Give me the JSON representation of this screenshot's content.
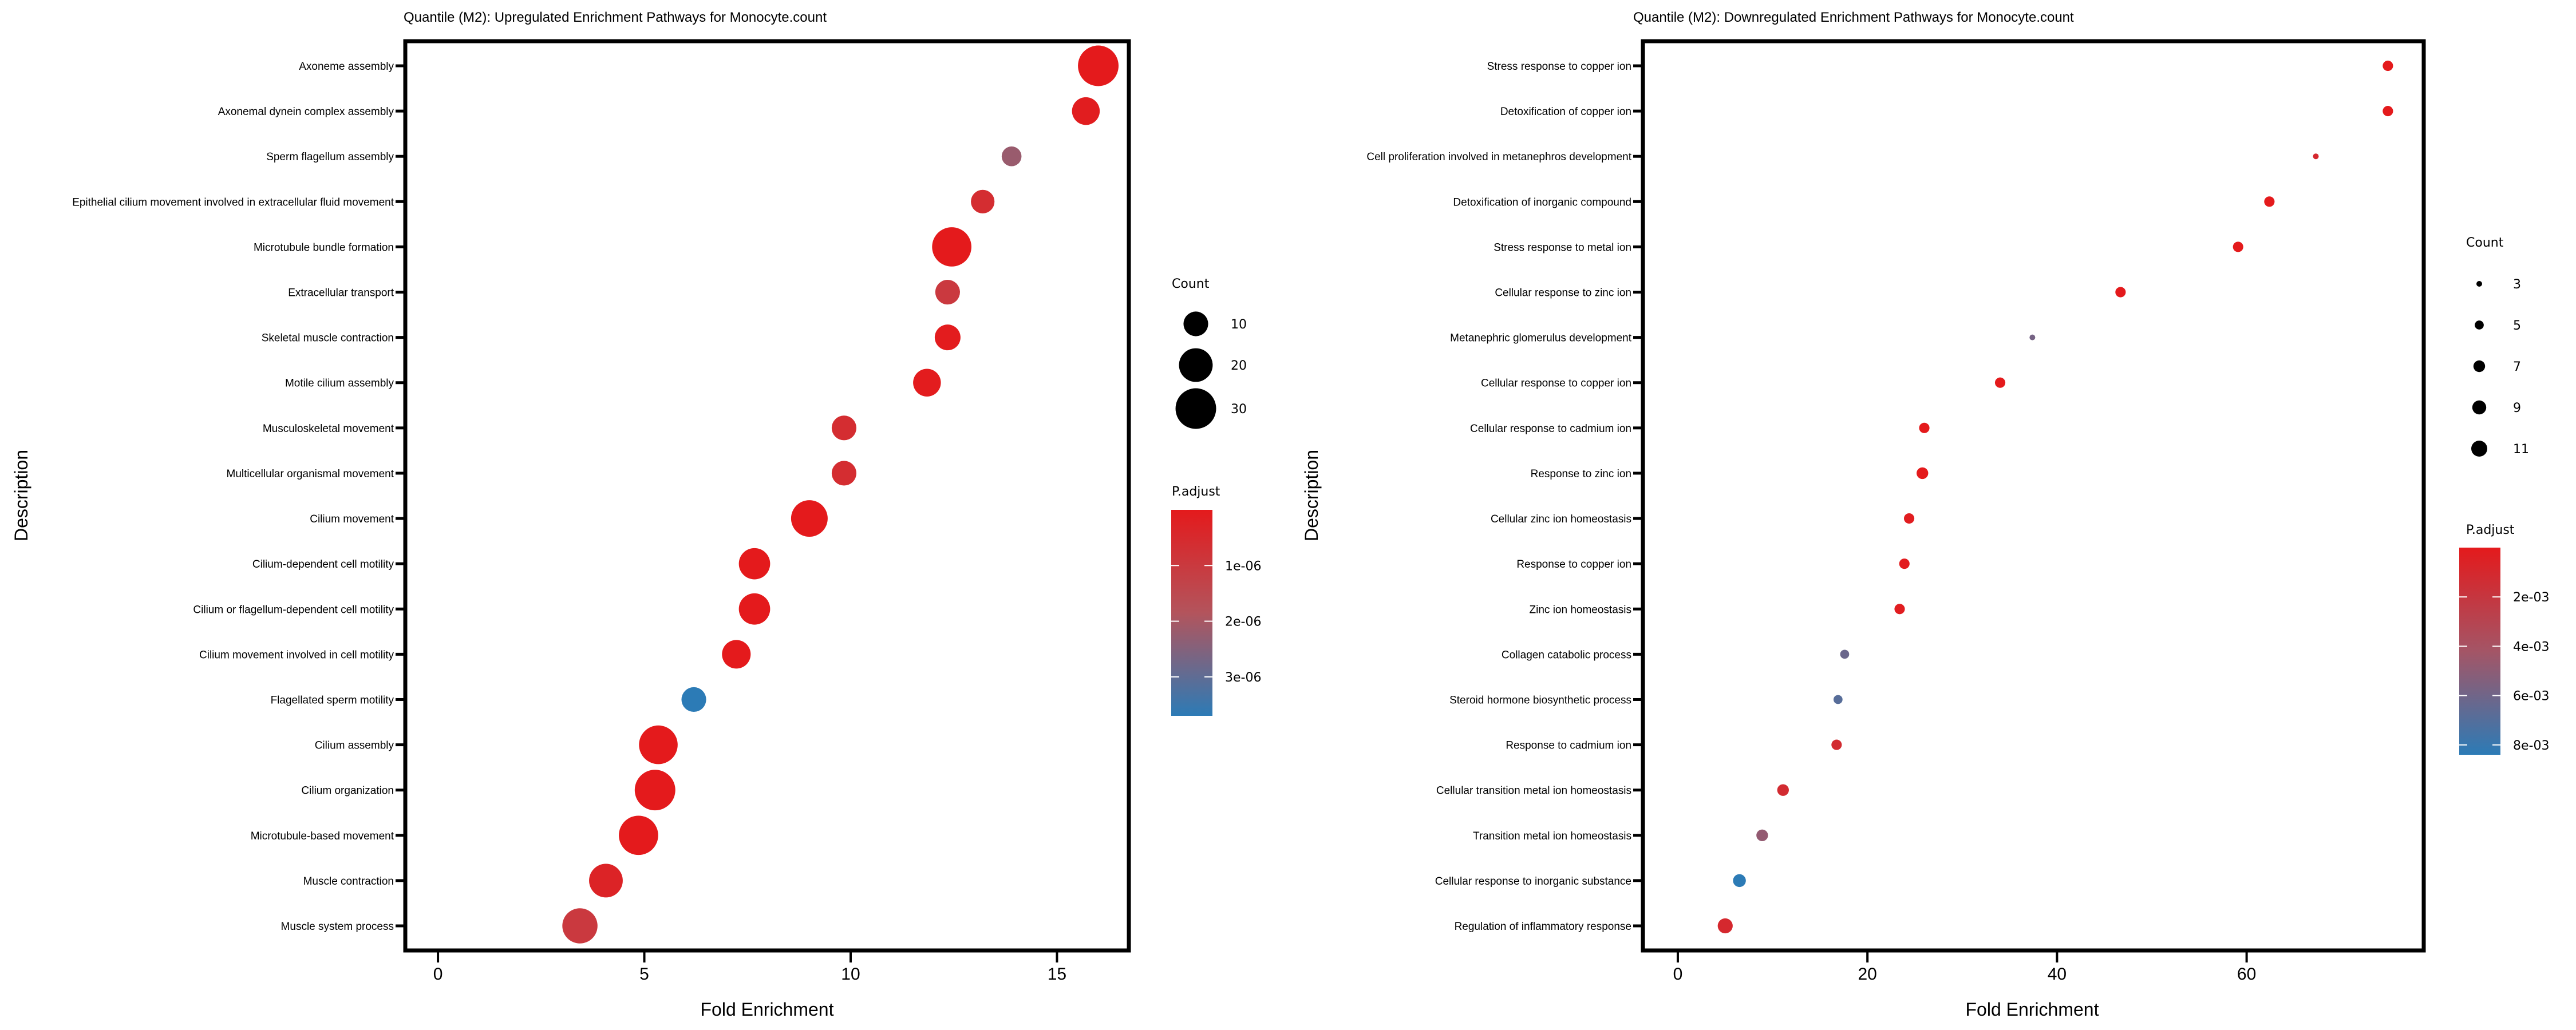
{
  "chart_data": [
    {
      "type": "scatter",
      "id": "up",
      "title": "Quantile (M2): Upregulated Enrichment Pathways for Monocyte.count",
      "xlabel": "Fold Enrichment",
      "ylabel": "Description",
      "xlim": [
        -0.75,
        16.7
      ],
      "xticks": [
        0,
        5,
        10,
        15
      ],
      "grid": false,
      "legend_position": "right",
      "size_legend": {
        "title": "Count",
        "values": [
          10,
          20,
          30
        ]
      },
      "color_legend": {
        "title": "P.adjust",
        "range": [
          0,
          3.7e-06
        ],
        "ticks": [
          1e-06,
          2e-06,
          3e-06
        ],
        "tick_labels": [
          "1e-06",
          "2e-06",
          "3e-06"
        ],
        "low_color": "#e41a1c",
        "high_color": "#2c7bb6"
      },
      "size_range": [
        3,
        31
      ],
      "points": [
        {
          "label": "Axoneme assembly",
          "x": 16.0,
          "count": 30,
          "p_adjust": 0.0
        },
        {
          "label": "Axonemal dynein complex assembly",
          "x": 15.7,
          "count": 13,
          "p_adjust": 1e-07
        },
        {
          "label": "Sperm flagellum assembly",
          "x": 13.9,
          "count": 6,
          "p_adjust": 2.2e-06
        },
        {
          "label": "Epithelial cilium movement involved in extracellular fluid movement",
          "x": 13.2,
          "count": 9,
          "p_adjust": 6e-07
        },
        {
          "label": "Microtubule bundle formation",
          "x": 12.45,
          "count": 28,
          "p_adjust": 0.0
        },
        {
          "label": "Extracellular transport",
          "x": 12.35,
          "count": 10,
          "p_adjust": 1e-06
        },
        {
          "label": "Skeletal muscle contraction",
          "x": 12.35,
          "count": 11,
          "p_adjust": 5e-08
        },
        {
          "label": "Motile cilium assembly",
          "x": 11.85,
          "count": 13,
          "p_adjust": 5e-08
        },
        {
          "label": "Musculoskeletal movement",
          "x": 9.84,
          "count": 10,
          "p_adjust": 6e-07
        },
        {
          "label": "Multicellular organismal movement",
          "x": 9.84,
          "count": 10,
          "p_adjust": 6e-07
        },
        {
          "label": "Cilium movement",
          "x": 9.0,
          "count": 24,
          "p_adjust": 0.0
        },
        {
          "label": "Cilium-dependent cell motility",
          "x": 7.67,
          "count": 17,
          "p_adjust": 0.0
        },
        {
          "label": "Cilium or flagellum-dependent cell motility",
          "x": 7.67,
          "count": 17,
          "p_adjust": 0.0
        },
        {
          "label": "Cilium movement involved in cell motility",
          "x": 7.23,
          "count": 14,
          "p_adjust": 0.0
        },
        {
          "label": "Flagellated sperm motility",
          "x": 6.2,
          "count": 10,
          "p_adjust": 3.7e-06
        },
        {
          "label": "Cilium assembly",
          "x": 5.34,
          "count": 27,
          "p_adjust": 0.0
        },
        {
          "label": "Cilium organization",
          "x": 5.26,
          "count": 30,
          "p_adjust": 0.0
        },
        {
          "label": "Microtubule-based movement",
          "x": 4.86,
          "count": 28,
          "p_adjust": 0.0
        },
        {
          "label": "Muscle contraction",
          "x": 4.07,
          "count": 20,
          "p_adjust": 3e-07
        },
        {
          "label": "Muscle system process",
          "x": 3.44,
          "count": 22,
          "p_adjust": 1e-06
        }
      ]
    },
    {
      "type": "scatter",
      "id": "down",
      "title": "Quantile (M2): Downregulated Enrichment Pathways for Monocyte.count",
      "xlabel": "Fold Enrichment",
      "ylabel": "Description",
      "xlim": [
        -3.5,
        78.5
      ],
      "xticks": [
        0,
        20,
        40,
        60
      ],
      "grid": false,
      "legend_position": "right",
      "size_legend": {
        "title": "Count",
        "values": [
          3,
          5,
          7,
          9,
          11
        ]
      },
      "color_legend": {
        "title": "P.adjust",
        "range": [
          0,
          0.0084
        ],
        "ticks": [
          0.002,
          0.004,
          0.006,
          0.008
        ],
        "tick_labels": [
          "2e-03",
          "4e-03",
          "6e-03",
          "8e-03"
        ],
        "low_color": "#e41a1c",
        "high_color": "#2c7bb6"
      },
      "size_range": [
        3,
        11
      ],
      "points": [
        {
          "label": "Stress response to copper ion",
          "x": 74.9,
          "count": 6,
          "p_adjust": 0.0
        },
        {
          "label": "Detoxification of copper ion",
          "x": 74.9,
          "count": 6,
          "p_adjust": 0.0
        },
        {
          "label": "Cell proliferation involved in metanephros development",
          "x": 67.3,
          "count": 3,
          "p_adjust": 0.001
        },
        {
          "label": "Detoxification of inorganic compound",
          "x": 62.4,
          "count": 6,
          "p_adjust": 0.0
        },
        {
          "label": "Stress response to metal ion",
          "x": 59.1,
          "count": 6,
          "p_adjust": 0.0
        },
        {
          "label": "Cellular response to zinc ion",
          "x": 46.7,
          "count": 6,
          "p_adjust": 0.0
        },
        {
          "label": "Metanephric glomerulus development",
          "x": 37.4,
          "count": 3,
          "p_adjust": 0.0058
        },
        {
          "label": "Cellular response to copper ion",
          "x": 34.0,
          "count": 6,
          "p_adjust": 0.0
        },
        {
          "label": "Cellular response to cadmium ion",
          "x": 26.0,
          "count": 6,
          "p_adjust": 0.0
        },
        {
          "label": "Response to zinc ion",
          "x": 25.8,
          "count": 7,
          "p_adjust": 0.0
        },
        {
          "label": "Cellular zinc ion homeostasis",
          "x": 24.4,
          "count": 6,
          "p_adjust": 0.0002
        },
        {
          "label": "Response to copper ion",
          "x": 23.9,
          "count": 6,
          "p_adjust": 0.0001
        },
        {
          "label": "Zinc ion homeostasis",
          "x": 23.4,
          "count": 6,
          "p_adjust": 0.0002
        },
        {
          "label": "Collagen catabolic process",
          "x": 17.6,
          "count": 5,
          "p_adjust": 0.0062
        },
        {
          "label": "Steroid hormone biosynthetic process",
          "x": 16.9,
          "count": 5,
          "p_adjust": 0.0069
        },
        {
          "label": "Response to cadmium ion",
          "x": 16.75,
          "count": 6,
          "p_adjust": 0.0012
        },
        {
          "label": "Cellular transition metal ion homeostasis",
          "x": 11.1,
          "count": 7,
          "p_adjust": 0.0012
        },
        {
          "label": "Transition metal ion homeostasis",
          "x": 8.9,
          "count": 7,
          "p_adjust": 0.0048
        },
        {
          "label": "Cellular response to inorganic substance",
          "x": 6.5,
          "count": 8,
          "p_adjust": 0.0084
        },
        {
          "label": "Regulation of inflammatory response",
          "x": 5.0,
          "count": 10,
          "p_adjust": 0.001
        }
      ]
    }
  ]
}
